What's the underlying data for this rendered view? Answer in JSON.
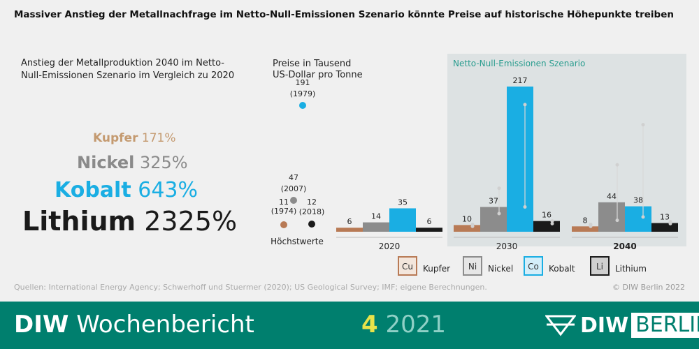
{
  "title": "Massiver Anstieg der Metallnachfrage im Netto-Null-Emissionen Szenario könnte Preise auf historische Höhepunkte treiben",
  "left_panel": {
    "subtitle": "Anstieg der Metallproduktion 2040 im Netto-Null-Emissionen Szenario im Vergleich zu 2020",
    "metals": [
      {
        "name": "Kupfer",
        "value": "171%",
        "color": "#c49a70"
      },
      {
        "name": "Nickel",
        "value": "325%",
        "color": "#8a8a8a"
      },
      {
        "name": "Kobalt",
        "value": "643%",
        "color": "#1aaee3"
      },
      {
        "name": "Lithium",
        "value": "2325%",
        "color": "#1a1a1a"
      }
    ]
  },
  "chart_data": {
    "type": "bar",
    "title": "Preise in Tausend US-Dollar pro Tonne",
    "scenario_label": "Netto-Null-Emissionen Szenario",
    "categories": [
      "2020",
      "2030",
      "2040"
    ],
    "series": [
      {
        "name": "Kupfer",
        "symbol": "Cu",
        "color": "#b87a55",
        "values": [
          6,
          10,
          8
        ]
      },
      {
        "name": "Nickel",
        "symbol": "Ni",
        "color": "#8c8c8c",
        "values": [
          14,
          37,
          44
        ]
      },
      {
        "name": "Kobalt",
        "symbol": "Co",
        "color": "#1aaee3",
        "values": [
          35,
          217,
          38
        ]
      },
      {
        "name": "Lithium",
        "symbol": "Li",
        "color": "#1a1a1a",
        "values": [
          6,
          16,
          13
        ]
      }
    ],
    "peaks_label": "Höchstwerte",
    "peaks": [
      {
        "metal": "Kupfer",
        "value": "11",
        "year": "(1974)"
      },
      {
        "metal": "Nickel",
        "value": "47",
        "year": "(2007)"
      },
      {
        "metal": "Kobalt",
        "value": "191",
        "year": "(1979)"
      },
      {
        "metal": "Lithium",
        "value": "12",
        "year": "(2018)"
      }
    ],
    "ranges_2030": [
      [
        6,
        11
      ],
      [
        25,
        65
      ],
      [
        35,
        190
      ],
      [
        10,
        16
      ]
    ],
    "ranges_2040": [
      [
        6,
        11
      ],
      [
        15,
        100
      ],
      [
        20,
        160
      ],
      [
        10,
        15
      ]
    ],
    "ranges_2040_kobalt_top": 160
  },
  "sources": "Quellen: International Energy Agency; Schwerhoff und Stuermer (2020); US Geological Survey; IMF; eigene Berechnungen.",
  "copyright": "© DIW Berlin 2022",
  "footer": {
    "brand_bold": "DIW",
    "brand_rest": "Wochenbericht",
    "issue_num": "4",
    "issue_year": "2021",
    "logo_diw": "DIW",
    "logo_berlin": "BERLIN"
  }
}
